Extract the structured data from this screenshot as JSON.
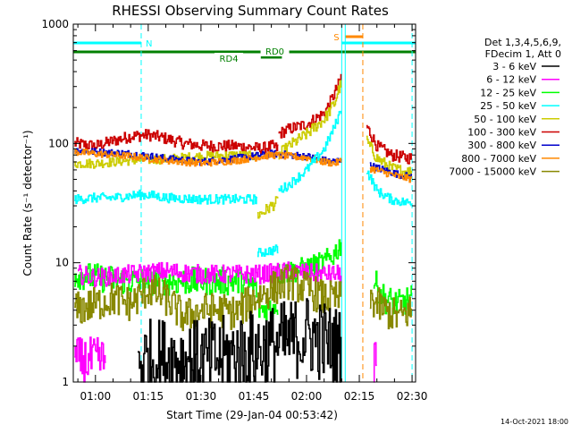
{
  "chart_data": {
    "type": "line",
    "title": "RHESSI Observing Summary Count Rates",
    "xlabel": "Start Time (29-Jan-04 00:53:42)",
    "ylabel": "Count Rate (s⁻¹ detector⁻¹)",
    "y_scale": "log",
    "ylim": [
      1,
      1000
    ],
    "xlim": [
      "00:53:42",
      "02:31:00"
    ],
    "x_ticks": [
      "01:00",
      "01:15",
      "01:30",
      "01:45",
      "02:00",
      "02:15",
      "02:30"
    ],
    "y_ticks": [
      "1",
      "10",
      "100",
      "1000"
    ],
    "footer": "14-Oct-2021 18:00",
    "legend": {
      "placement": "right",
      "header": [
        "Det 1,3,4,5,6,9,",
        "FDecim 1, Att 0"
      ],
      "entries": [
        {
          "label": "3 - 6 keV",
          "color": "#000000"
        },
        {
          "label": "6 - 12 keV",
          "color": "#ff00ff"
        },
        {
          "label": "12 - 25 keV",
          "color": "#00ff00"
        },
        {
          "label": "25 - 50 keV",
          "color": "#00ffff"
        },
        {
          "label": "50 - 100 keV",
          "color": "#cccc00"
        },
        {
          "label": "100 - 300 keV",
          "color": "#cc0000"
        },
        {
          "label": "300 - 800 keV",
          "color": "#0000cc"
        },
        {
          "label": "800 - 7000 keV",
          "color": "#ff8800"
        },
        {
          "label": "7000 - 15000 keV",
          "color": "#888800"
        }
      ]
    },
    "annotations": [
      {
        "label": "N",
        "color": "#00ffff",
        "time": "01:13"
      },
      {
        "label": "S",
        "color": "#ff8800",
        "time": "02:11"
      },
      {
        "label": "RD0",
        "color": "#008000",
        "time": "01:51"
      },
      {
        "label": "RD4",
        "color": "#008000",
        "time": "01:43"
      }
    ],
    "bars": [
      {
        "name": "night",
        "color": "#00ffff",
        "spans": [
          [
            "00:53:42",
            "01:13"
          ],
          [
            "02:10",
            "02:31"
          ]
        ]
      },
      {
        "name": "saa",
        "color": "#ff8800",
        "spans": [
          [
            "02:11",
            "02:16"
          ]
        ]
      },
      {
        "name": "rd0",
        "color": "#008000",
        "spans": [
          [
            "00:53:42",
            "01:47"
          ],
          [
            "01:55",
            "02:31"
          ]
        ]
      },
      {
        "name": "rd4",
        "color": "#008000",
        "spans": [
          [
            "01:47",
            "01:53"
          ]
        ]
      }
    ],
    "vlines": [
      {
        "time": "01:13",
        "color": "#00ffff",
        "dashed": true
      },
      {
        "time": "02:10",
        "color": "#00ffff",
        "dashed": false
      },
      {
        "time": "02:11",
        "color": "#00ffff",
        "dashed": false
      },
      {
        "time": "02:16",
        "color": "#ff8800",
        "dashed": true
      },
      {
        "time": "02:30",
        "color": "#00ffff",
        "dashed": true
      }
    ],
    "series": [
      {
        "name": "100 - 300 keV",
        "color": "#cc0000",
        "segments": [
          {
            "points": [
              [
                "00:54",
                100
              ],
              [
                "01:00",
                95
              ],
              [
                "01:05",
                105
              ],
              [
                "01:10",
                115
              ],
              [
                "01:15",
                118
              ],
              [
                "01:20",
                110
              ],
              [
                "01:25",
                100
              ],
              [
                "01:30",
                96
              ],
              [
                "01:35",
                95
              ],
              [
                "01:40",
                95
              ],
              [
                "01:45",
                92
              ],
              [
                "01:47",
                90
              ],
              [
                "01:50",
                95
              ],
              [
                "01:52",
                90
              ]
            ],
            "noise": 0.05
          },
          {
            "points": [
              [
                "01:52",
                120
              ],
              [
                "01:55",
                132
              ],
              [
                "02:00",
                145
              ],
              [
                "02:05",
                180
              ],
              [
                "02:07",
                230
              ],
              [
                "02:09",
                310
              ],
              [
                "02:10",
                380
              ]
            ],
            "noise": 0.05
          },
          {
            "points": [
              [
                "02:17",
                140
              ],
              [
                "02:20",
                95
              ],
              [
                "02:24",
                80
              ],
              [
                "02:28",
                76
              ],
              [
                "02:30",
                75
              ]
            ],
            "noise": 0.05
          }
        ]
      },
      {
        "name": "50 - 100 keV",
        "color": "#cccc00",
        "segments": [
          {
            "points": [
              [
                "00:54",
                68
              ],
              [
                "01:00",
                68
              ],
              [
                "01:10",
                72
              ],
              [
                "01:20",
                74
              ],
              [
                "01:30",
                78
              ],
              [
                "01:40",
                80
              ],
              [
                "01:45",
                78
              ],
              [
                "01:46",
                76
              ]
            ],
            "noise": 0.04
          },
          {
            "points": [
              [
                "01:46",
                25
              ],
              [
                "01:48",
                27
              ],
              [
                "01:50",
                30
              ],
              [
                "01:52",
                33
              ]
            ],
            "noise": 0.05
          },
          {
            "points": [
              [
                "01:52",
                80
              ],
              [
                "01:55",
                95
              ],
              [
                "02:00",
                120
              ],
              [
                "02:05",
                160
              ],
              [
                "02:08",
                220
              ],
              [
                "02:09",
                280
              ],
              [
                "02:10",
                330
              ]
            ],
            "noise": 0.05
          },
          {
            "points": [
              [
                "02:17",
                105
              ],
              [
                "02:20",
                75
              ],
              [
                "02:24",
                62
              ],
              [
                "02:28",
                58
              ],
              [
                "02:30",
                58
              ]
            ],
            "noise": 0.05
          }
        ]
      },
      {
        "name": "300 - 800 keV",
        "color": "#0000cc",
        "segments": [
          {
            "points": [
              [
                "00:54",
                88
              ],
              [
                "01:00",
                85
              ],
              [
                "01:10",
                82
              ],
              [
                "01:20",
                75
              ],
              [
                "01:30",
                70
              ],
              [
                "01:40",
                75
              ],
              [
                "01:50",
                82
              ],
              [
                "02:00",
                78
              ],
              [
                "02:05",
                72
              ],
              [
                "02:08",
                70
              ],
              [
                "02:10",
                75
              ]
            ],
            "noise": 0.03
          },
          {
            "points": [
              [
                "02:18",
                65
              ],
              [
                "02:22",
                60
              ],
              [
                "02:26",
                55
              ],
              [
                "02:30",
                52
              ]
            ],
            "noise": 0.03
          }
        ]
      },
      {
        "name": "800 - 7000 keV",
        "color": "#ff8800",
        "segments": [
          {
            "points": [
              [
                "00:54",
                85
              ],
              [
                "01:00",
                82
              ],
              [
                "01:10",
                78
              ],
              [
                "01:20",
                72
              ],
              [
                "01:30",
                68
              ],
              [
                "01:40",
                72
              ],
              [
                "01:50",
                80
              ],
              [
                "02:00",
                76
              ],
              [
                "02:05",
                70
              ],
              [
                "02:08",
                68
              ],
              [
                "02:10",
                72
              ]
            ],
            "noise": 0.03
          },
          {
            "points": [
              [
                "02:18",
                62
              ],
              [
                "02:22",
                57
              ],
              [
                "02:26",
                53
              ],
              [
                "02:30",
                50
              ]
            ],
            "noise": 0.03
          }
        ]
      },
      {
        "name": "25 - 50 keV",
        "color": "#00ffff",
        "segments": [
          {
            "points": [
              [
                "00:54",
                34
              ],
              [
                "01:00",
                35
              ],
              [
                "01:05",
                35
              ],
              [
                "01:12",
                37
              ],
              [
                "01:15",
                37
              ],
              [
                "01:20",
                35
              ],
              [
                "01:30",
                34
              ],
              [
                "01:40",
                34
              ],
              [
                "01:46",
                34
              ]
            ],
            "noise": 0.04
          },
          {
            "points": [
              [
                "01:46",
                12
              ],
              [
                "01:49",
                12.5
              ],
              [
                "01:52",
                13
              ]
            ],
            "noise": 0.04
          },
          {
            "points": [
              [
                "01:52",
                40
              ],
              [
                "01:55",
                45
              ],
              [
                "02:00",
                60
              ],
              [
                "02:05",
                90
              ],
              [
                "02:08",
                140
              ],
              [
                "02:10",
                200
              ]
            ],
            "noise": 0.04
          },
          {
            "points": [
              [
                "02:17",
                60
              ],
              [
                "02:20",
                40
              ],
              [
                "02:24",
                34
              ],
              [
                "02:28",
                32
              ],
              [
                "02:30",
                32
              ]
            ],
            "noise": 0.04
          }
        ]
      },
      {
        "name": "12 - 25 keV",
        "color": "#00ff00",
        "segments": [
          {
            "points": [
              [
                "00:54",
                8
              ],
              [
                "01:00",
                7.5
              ],
              [
                "01:10",
                7
              ],
              [
                "01:20",
                7
              ],
              [
                "01:30",
                7
              ],
              [
                "01:40",
                7
              ],
              [
                "01:44",
                6.5
              ],
              [
                "01:46",
                6
              ]
            ],
            "noise": 0.12
          },
          {
            "points": [
              [
                "01:46",
                4
              ],
              [
                "01:49",
                4.2
              ],
              [
                "01:52",
                4.5
              ]
            ],
            "noise": 0.1
          },
          {
            "points": [
              [
                "01:52",
                8
              ],
              [
                "01:56",
                8.5
              ],
              [
                "02:00",
                9
              ],
              [
                "02:05",
                10
              ],
              [
                "02:08",
                12
              ],
              [
                "02:10",
                15
              ]
            ],
            "noise": 0.1
          },
          {
            "points": [
              [
                "02:19",
                7
              ],
              [
                "02:22",
                5
              ],
              [
                "02:26",
                4.5
              ],
              [
                "02:30",
                5
              ]
            ],
            "noise": 0.12
          }
        ]
      },
      {
        "name": "6 - 12 keV",
        "color": "#ff00ff",
        "segments": [
          {
            "points": [
              [
                "00:55",
                8
              ],
              [
                "01:00",
                7.5
              ],
              [
                "01:10",
                8
              ],
              [
                "01:20",
                8.5
              ],
              [
                "01:30",
                8
              ],
              [
                "01:40",
                8
              ],
              [
                "01:47",
                8
              ],
              [
                "01:55",
                8.5
              ],
              [
                "02:05",
                8
              ],
              [
                "02:10",
                8
              ]
            ],
            "noise": 0.08
          },
          {
            "points": [
              [
                "00:54",
                1.5
              ],
              [
                "00:57",
                1.5
              ],
              [
                "01:00",
                1.5
              ],
              [
                "01:03",
                1.5
              ]
            ],
            "noise": 0.2
          },
          {
            "points": [
              [
                "02:19",
                1.5
              ],
              [
                "02:20",
                1.5
              ]
            ],
            "noise": 0.2
          }
        ]
      },
      {
        "name": "7000 - 15000 keV",
        "color": "#888800",
        "segments": [
          {
            "points": [
              [
                "00:54",
                4
              ],
              [
                "01:00",
                4.5
              ],
              [
                "01:05",
                5
              ],
              [
                "01:10",
                4.5
              ],
              [
                "01:15",
                6
              ],
              [
                "01:20",
                5
              ],
              [
                "01:25",
                3.5
              ],
              [
                "01:30",
                4
              ],
              [
                "01:35",
                4
              ],
              [
                "01:40",
                3.8
              ],
              [
                "01:45",
                5
              ],
              [
                "01:50",
                6
              ],
              [
                "01:55",
                7
              ],
              [
                "02:00",
                6
              ],
              [
                "02:05",
                5
              ],
              [
                "02:10",
                5
              ]
            ],
            "noise": 0.15
          },
          {
            "points": [
              [
                "02:18",
                5
              ],
              [
                "02:22",
                4
              ],
              [
                "02:26",
                3.5
              ],
              [
                "02:30",
                4
              ]
            ],
            "noise": 0.15
          }
        ]
      },
      {
        "name": "3 - 6 keV",
        "color": "#000000",
        "segments": [
          {
            "points": [
              [
                "01:12",
                1.5
              ],
              [
                "01:20",
                1.6
              ],
              [
                "01:30",
                1.5
              ],
              [
                "01:40",
                1.7
              ],
              [
                "01:50",
                2.0
              ],
              [
                "02:00",
                2.5
              ],
              [
                "02:08",
                2.0
              ],
              [
                "02:10",
                1.8
              ]
            ],
            "noise": 0.35
          }
        ]
      }
    ]
  }
}
